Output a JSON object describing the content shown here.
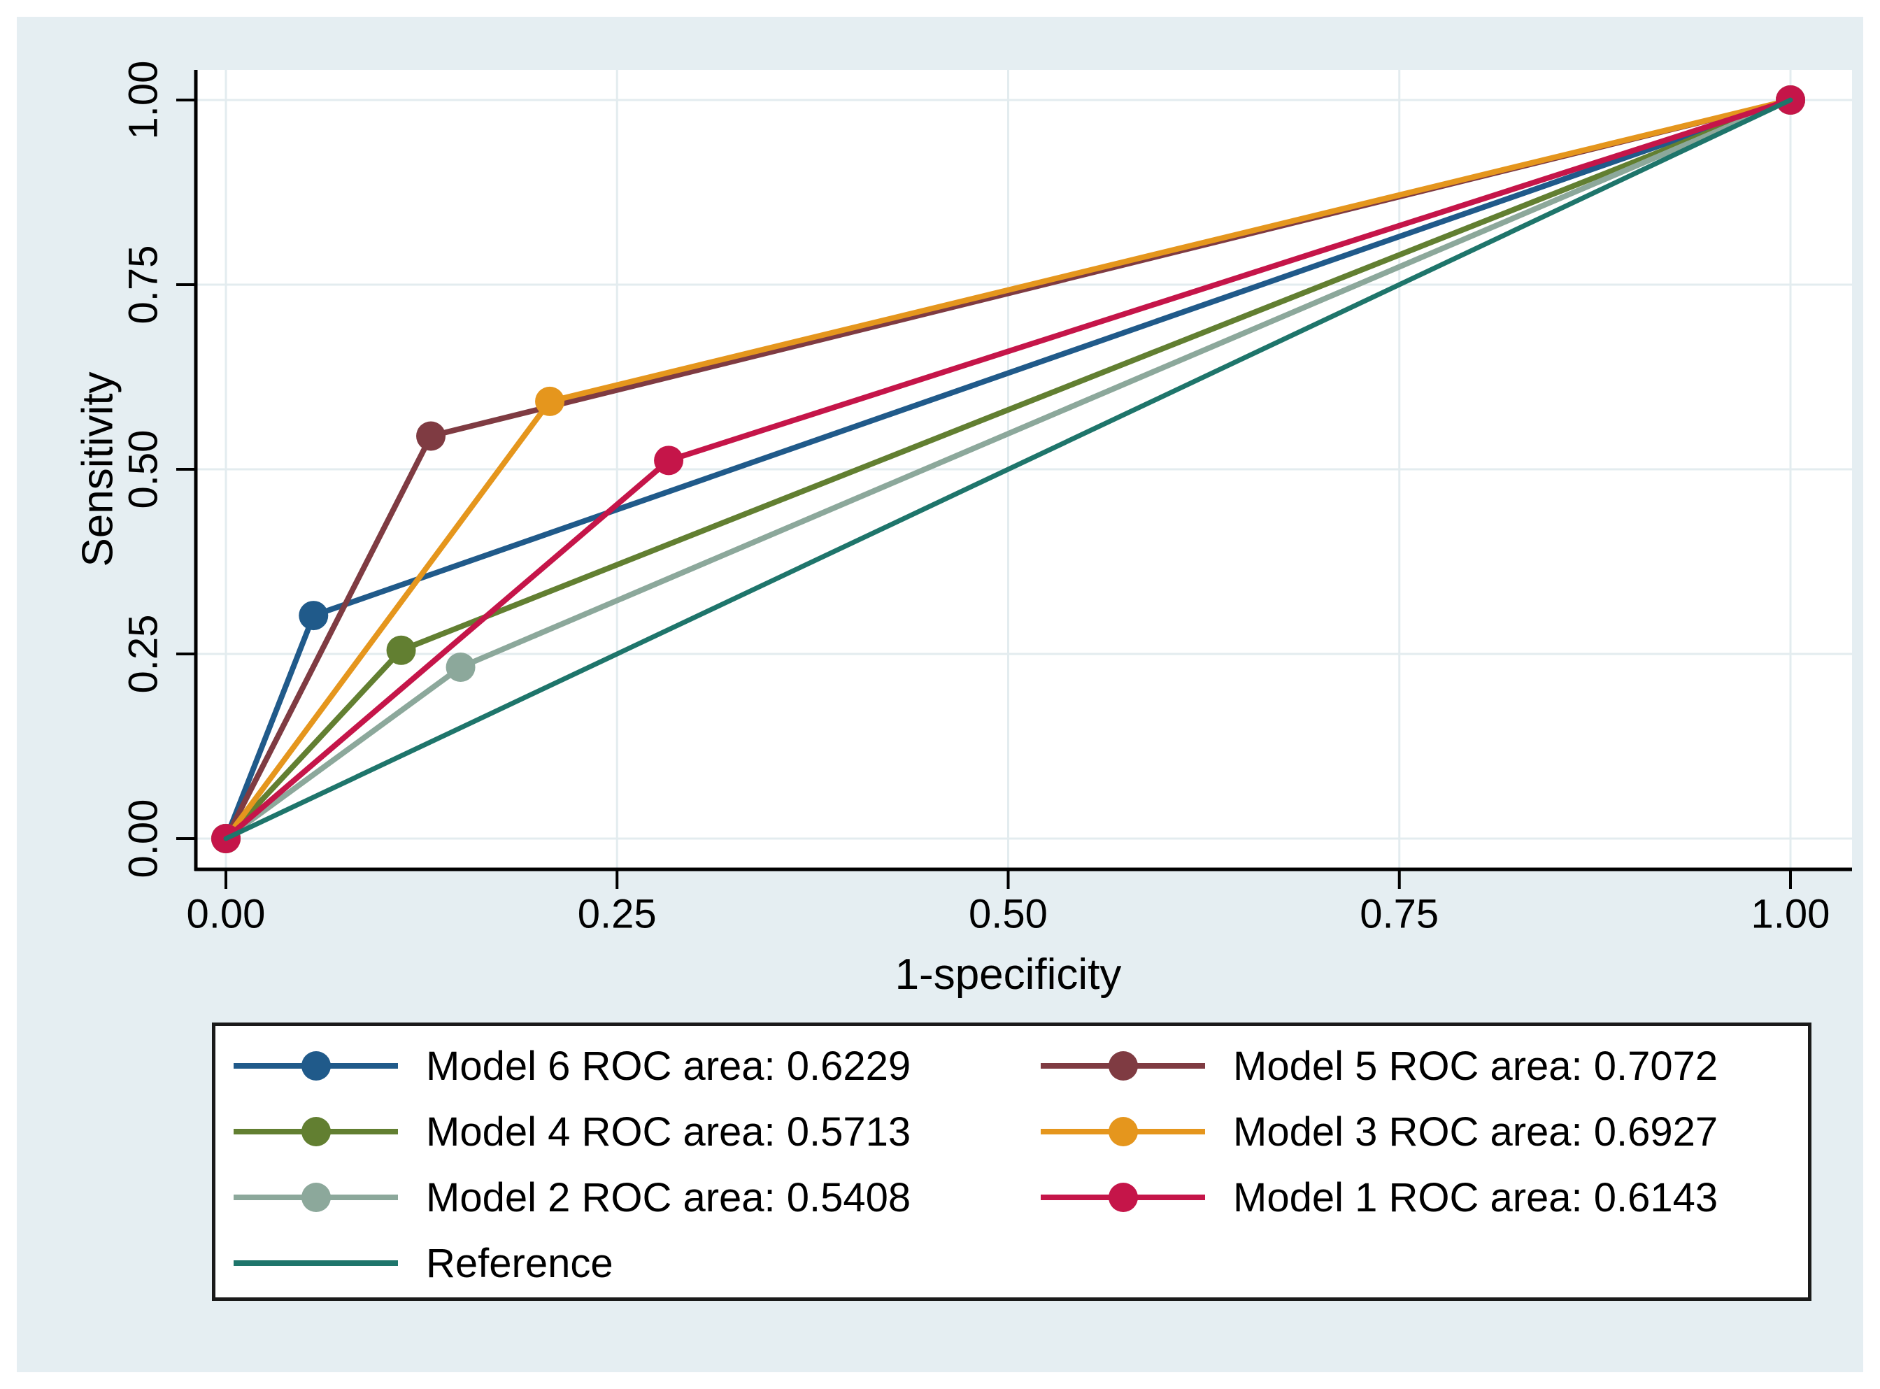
{
  "figure": {
    "outer_background": "#ffffff",
    "panel_color": "#e5eef2",
    "plot_background": "#ffffff",
    "grid_color": "#e3ecef",
    "axis_color": "#000000",
    "text_color": "#000000",
    "legend_border_color": "#1a1a1a"
  },
  "chart_data": {
    "type": "line",
    "title": "",
    "xlabel": "1-specificity",
    "ylabel": "Sensitivity",
    "xlim": [
      0,
      1
    ],
    "ylim": [
      0,
      1
    ],
    "grid": true,
    "legend_position": "bottom",
    "legend_columns": 2,
    "xticks": [
      {
        "value": 0.0,
        "label": "0.00"
      },
      {
        "value": 0.25,
        "label": "0.25"
      },
      {
        "value": 0.5,
        "label": "0.50"
      },
      {
        "value": 0.75,
        "label": "0.75"
      },
      {
        "value": 1.0,
        "label": "1.00"
      }
    ],
    "yticks": [
      {
        "value": 0.0,
        "label": "0.00"
      },
      {
        "value": 0.25,
        "label": "0.25"
      },
      {
        "value": 0.5,
        "label": "0.50"
      },
      {
        "value": 0.75,
        "label": "0.75"
      },
      {
        "value": 1.0,
        "label": "1.00"
      }
    ],
    "series": [
      {
        "name": "Model 6",
        "legend_label": "Model 6 ROC area: 0.6229",
        "roc_area": "0.6229",
        "color": "#205a8a",
        "marker": true,
        "points": [
          [
            0,
            0
          ],
          [
            0.056,
            0.302
          ],
          [
            1,
            1
          ]
        ]
      },
      {
        "name": "Model 5",
        "legend_label": "Model 5 ROC area: 0.7072",
        "roc_area": "0.7072",
        "color": "#7f3b42",
        "marker": true,
        "points": [
          [
            0,
            0
          ],
          [
            0.131,
            0.545
          ],
          [
            1,
            1
          ]
        ]
      },
      {
        "name": "Model 4",
        "legend_label": "Model 4 ROC area: 0.5713",
        "roc_area": "0.5713",
        "color": "#627f31",
        "marker": true,
        "points": [
          [
            0,
            0
          ],
          [
            0.112,
            0.255
          ],
          [
            1,
            1
          ]
        ]
      },
      {
        "name": "Model 3",
        "legend_label": "Model 3 ROC area: 0.6927",
        "roc_area": "0.6927",
        "color": "#e5961d",
        "marker": true,
        "points": [
          [
            0,
            0
          ],
          [
            0.207,
            0.592
          ],
          [
            1,
            1
          ]
        ]
      },
      {
        "name": "Model 2",
        "legend_label": "Model 2 ROC area: 0.5408",
        "roc_area": "0.5408",
        "color": "#8ca89b",
        "marker": true,
        "points": [
          [
            0,
            0
          ],
          [
            0.15,
            0.232
          ],
          [
            1,
            1
          ]
        ]
      },
      {
        "name": "Model 1",
        "legend_label": "Model 1 ROC area: 0.6143",
        "roc_area": "0.6143",
        "color": "#c51549",
        "marker": true,
        "points": [
          [
            0,
            0
          ],
          [
            0.283,
            0.512
          ],
          [
            1,
            1
          ]
        ]
      },
      {
        "name": "Reference",
        "legend_label": "Reference",
        "color": "#1e756b",
        "marker": false,
        "points": [
          [
            0,
            0
          ],
          [
            1,
            1
          ]
        ]
      }
    ]
  }
}
